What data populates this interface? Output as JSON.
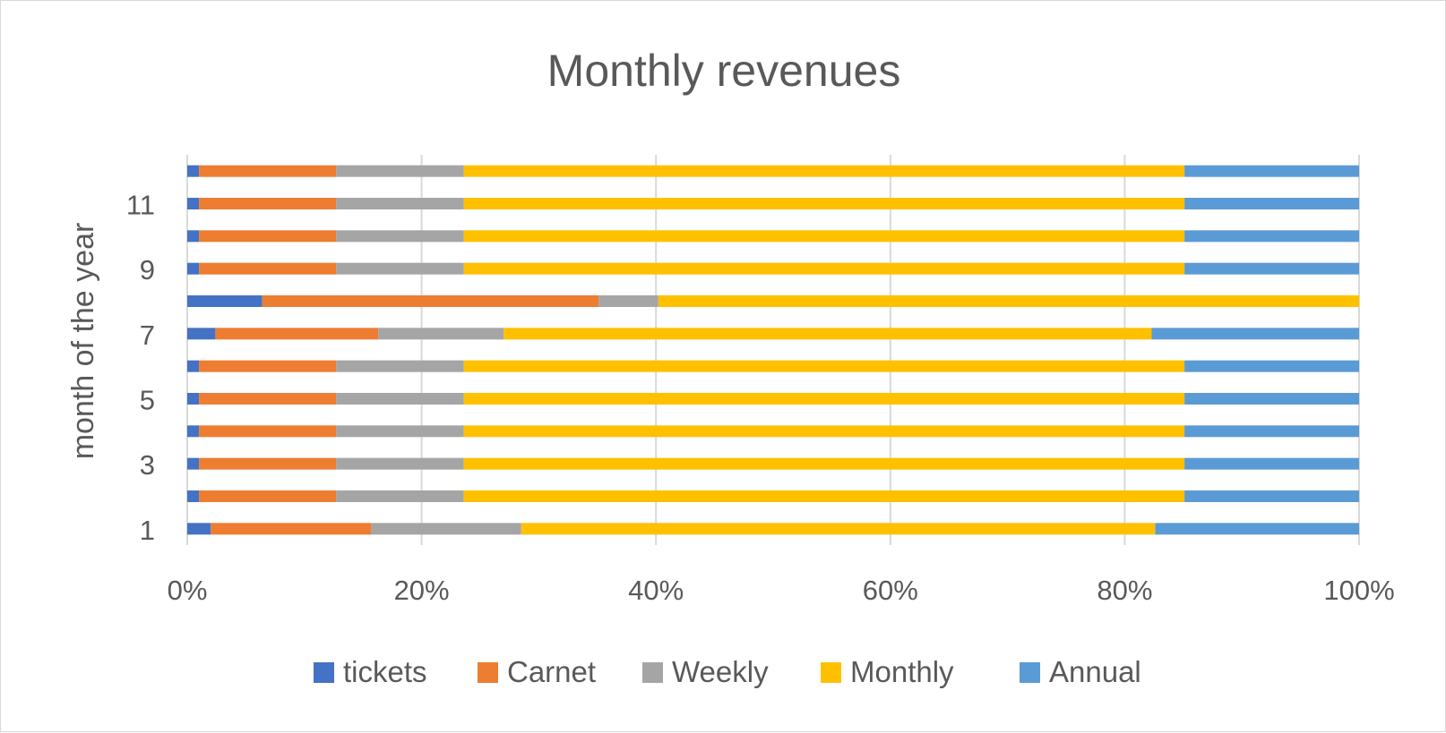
{
  "chart_data": {
    "type": "bar",
    "orientation": "horizontal",
    "stacking": "percent",
    "title": "Monthly revenues",
    "xlabel": "",
    "ylabel": "month of the year",
    "xlim": [
      0,
      100
    ],
    "x_ticks": [
      "0%",
      "20%",
      "40%",
      "60%",
      "80%",
      "100%"
    ],
    "categories": [
      "1",
      "2",
      "3",
      "4",
      "5",
      "6",
      "7",
      "8",
      "9",
      "10",
      "11",
      "12"
    ],
    "y_tick_labels_shown": [
      "1",
      "3",
      "5",
      "7",
      "9",
      "11"
    ],
    "grid": "vertical",
    "legend": "bottom",
    "series": [
      {
        "name": "tickets",
        "color": "#4472C4",
        "values": [
          2.0,
          1.0,
          1.0,
          1.0,
          1.0,
          1.0,
          2.4,
          6.4,
          1.0,
          1.0,
          1.0,
          1.0
        ]
      },
      {
        "name": "Carnet",
        "color": "#ED7D31",
        "values": [
          13.7,
          11.7,
          11.7,
          11.7,
          11.7,
          11.7,
          13.9,
          28.7,
          11.7,
          11.7,
          11.7,
          11.7
        ]
      },
      {
        "name": "Weekly",
        "color": "#A5A5A5",
        "values": [
          12.8,
          10.9,
          10.9,
          10.9,
          10.9,
          10.9,
          10.7,
          5.1,
          10.9,
          10.9,
          10.9,
          10.9
        ]
      },
      {
        "name": "Monthly",
        "color": "#FFC000",
        "values": [
          54.1,
          61.5,
          61.5,
          61.5,
          61.5,
          61.5,
          55.3,
          59.8,
          61.5,
          61.5,
          61.5,
          61.5
        ]
      },
      {
        "name": "Annual",
        "color": "#5B9BD5",
        "values": [
          17.4,
          14.9,
          14.9,
          14.9,
          14.9,
          14.9,
          17.7,
          0.0,
          14.9,
          14.9,
          14.9,
          14.9
        ]
      }
    ]
  }
}
